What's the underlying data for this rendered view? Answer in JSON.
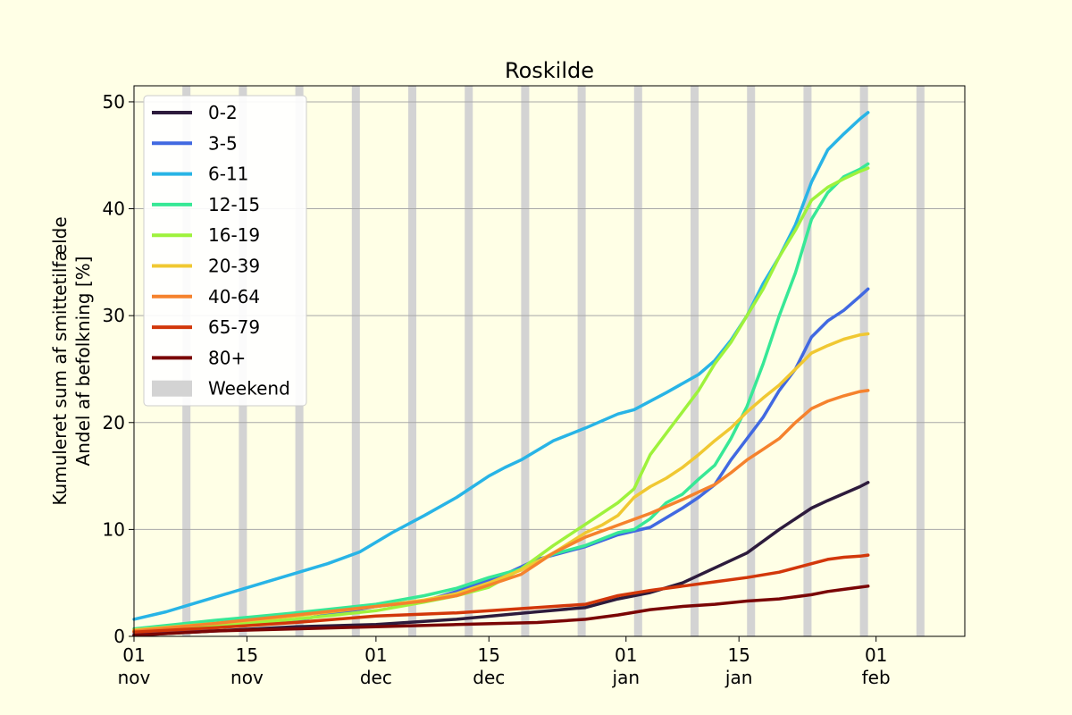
{
  "chart_data": {
    "type": "line",
    "title": "Roskilde",
    "ylabel_line1": "Kumuleret sum af smittetilfælde",
    "ylabel_line2": "Andel af befolkning [%]",
    "xlabel": "",
    "xlim_days": [
      0,
      103
    ],
    "ylim": [
      0,
      51.5
    ],
    "grid": "horizontal",
    "legend_position": "upper-left",
    "yticks": [
      {
        "value": 0,
        "label": "0"
      },
      {
        "value": 10,
        "label": "10"
      },
      {
        "value": 20,
        "label": "20"
      },
      {
        "value": 30,
        "label": "30"
      },
      {
        "value": 40,
        "label": "40"
      },
      {
        "value": 50,
        "label": "50"
      }
    ],
    "xticks": [
      {
        "day": 0,
        "line1": "01",
        "line2": "nov"
      },
      {
        "day": 14,
        "line1": "15",
        "line2": "nov"
      },
      {
        "day": 30,
        "line1": "01",
        "line2": "dec"
      },
      {
        "day": 44,
        "line1": "15",
        "line2": "dec"
      },
      {
        "day": 61,
        "line1": "01",
        "line2": "jan"
      },
      {
        "day": 75,
        "line1": "15",
        "line2": "jan"
      },
      {
        "day": 92,
        "line1": "01",
        "line2": "feb"
      }
    ],
    "weekend_starts": [
      6,
      13,
      20,
      27,
      34,
      41,
      48,
      55,
      62,
      69,
      76,
      83,
      90,
      97
    ],
    "weekend_label": "Weekend",
    "weekend_color": "#d3d3d3",
    "series": [
      {
        "name": "0-2",
        "color": "#2d1b3c",
        "x": [
          0,
          10,
          20,
          30,
          40,
          50,
          56,
          60,
          64,
          68,
          72,
          76,
          80,
          84,
          86,
          90,
          91
        ],
        "y": [
          0.1,
          0.5,
          0.9,
          1.1,
          1.6,
          2.3,
          2.7,
          3.5,
          4.1,
          5.0,
          6.4,
          7.8,
          10.0,
          12.0,
          12.7,
          14.0,
          14.4
        ]
      },
      {
        "name": "3-5",
        "color": "#4169e1",
        "x": [
          0,
          10,
          20,
          30,
          36,
          40,
          46,
          50,
          56,
          60,
          64,
          68,
          70,
          72,
          74,
          78,
          80,
          82,
          84,
          86,
          88,
          90,
          91
        ],
        "y": [
          0.2,
          0.8,
          1.5,
          2.8,
          3.3,
          4.2,
          5.8,
          7.2,
          8.4,
          9.5,
          10.2,
          12.0,
          13.0,
          14.2,
          16.5,
          20.5,
          23.0,
          25.0,
          28.0,
          29.5,
          30.5,
          31.8,
          32.5
        ]
      },
      {
        "name": "6-11",
        "color": "#28b4e6",
        "x": [
          0,
          4,
          8,
          12,
          16,
          20,
          24,
          28,
          32,
          36,
          40,
          44,
          46,
          48,
          52,
          56,
          60,
          62,
          66,
          70,
          72,
          74,
          76,
          78,
          80,
          82,
          84,
          86,
          88,
          90,
          91
        ],
        "y": [
          1.6,
          2.3,
          3.2,
          4.1,
          5.0,
          5.9,
          6.8,
          7.9,
          9.7,
          11.3,
          13.0,
          15.0,
          15.8,
          16.5,
          18.3,
          19.5,
          20.8,
          21.2,
          22.8,
          24.5,
          25.8,
          27.7,
          30.0,
          33.0,
          35.5,
          38.5,
          42.5,
          45.5,
          47.0,
          48.4,
          49.0
        ]
      },
      {
        "name": "12-15",
        "color": "#37e896",
        "x": [
          0,
          10,
          20,
          30,
          36,
          40,
          44,
          48,
          52,
          56,
          60,
          62,
          64,
          66,
          68,
          70,
          72,
          74,
          76,
          78,
          80,
          82,
          84,
          86,
          88,
          90,
          91
        ],
        "y": [
          0.7,
          1.5,
          2.2,
          3.0,
          3.8,
          4.5,
          5.5,
          6.3,
          7.7,
          8.5,
          9.7,
          10.0,
          11.0,
          12.5,
          13.3,
          14.7,
          16.0,
          18.5,
          21.5,
          25.5,
          30.0,
          34.0,
          39.0,
          41.5,
          43.0,
          43.7,
          44.2
        ]
      },
      {
        "name": "16-19",
        "color": "#9ef23c",
        "x": [
          0,
          10,
          20,
          30,
          36,
          40,
          44,
          48,
          52,
          56,
          58,
          60,
          62,
          64,
          66,
          68,
          70,
          72,
          74,
          76,
          78,
          80,
          82,
          84,
          86,
          88,
          90,
          91
        ],
        "y": [
          0.5,
          1.0,
          1.6,
          2.4,
          3.2,
          3.8,
          4.6,
          6.3,
          8.5,
          10.5,
          11.5,
          12.5,
          13.8,
          17.0,
          19.0,
          21.0,
          23.0,
          25.5,
          27.5,
          30.0,
          32.5,
          35.5,
          38.0,
          40.8,
          42.0,
          42.8,
          43.5,
          43.8
        ]
      },
      {
        "name": "20-39",
        "color": "#f0c832",
        "x": [
          0,
          10,
          20,
          30,
          36,
          40,
          44,
          48,
          52,
          56,
          58,
          60,
          62,
          64,
          66,
          68,
          70,
          72,
          74,
          76,
          78,
          80,
          82,
          84,
          86,
          88,
          90,
          91
        ],
        "y": [
          0.6,
          1.2,
          1.9,
          2.8,
          3.4,
          4.0,
          5.0,
          6.2,
          7.8,
          9.7,
          10.4,
          11.3,
          13.0,
          14.0,
          14.8,
          15.8,
          17.0,
          18.3,
          19.5,
          21.0,
          22.3,
          23.5,
          25.0,
          26.5,
          27.2,
          27.8,
          28.2,
          28.3
        ]
      },
      {
        "name": "40-64",
        "color": "#f5822d",
        "x": [
          0,
          10,
          20,
          30,
          36,
          40,
          44,
          48,
          52,
          56,
          60,
          64,
          68,
          70,
          72,
          74,
          76,
          78,
          80,
          82,
          84,
          86,
          88,
          90,
          91
        ],
        "y": [
          0.5,
          1.2,
          2.0,
          2.8,
          3.3,
          3.8,
          4.8,
          5.8,
          7.8,
          9.3,
          10.4,
          11.5,
          12.8,
          13.5,
          14.2,
          15.3,
          16.5,
          17.5,
          18.5,
          20.0,
          21.3,
          22.0,
          22.5,
          22.9,
          23.0
        ]
      },
      {
        "name": "65-79",
        "color": "#d2370a",
        "x": [
          0,
          10,
          20,
          30,
          40,
          50,
          56,
          60,
          64,
          68,
          72,
          76,
          80,
          84,
          86,
          88,
          90,
          91
        ],
        "y": [
          0.4,
          0.8,
          1.3,
          1.9,
          2.2,
          2.7,
          3.0,
          3.8,
          4.3,
          4.7,
          5.1,
          5.5,
          6.0,
          6.8,
          7.2,
          7.4,
          7.5,
          7.6
        ]
      },
      {
        "name": "80+",
        "color": "#7a0505",
        "x": [
          0,
          10,
          20,
          30,
          40,
          50,
          56,
          60,
          64,
          68,
          72,
          76,
          80,
          84,
          86,
          88,
          90,
          91
        ],
        "y": [
          0.1,
          0.5,
          0.7,
          0.9,
          1.1,
          1.3,
          1.6,
          2.0,
          2.5,
          2.8,
          3.0,
          3.3,
          3.5,
          3.9,
          4.2,
          4.4,
          4.6,
          4.7
        ]
      }
    ]
  }
}
